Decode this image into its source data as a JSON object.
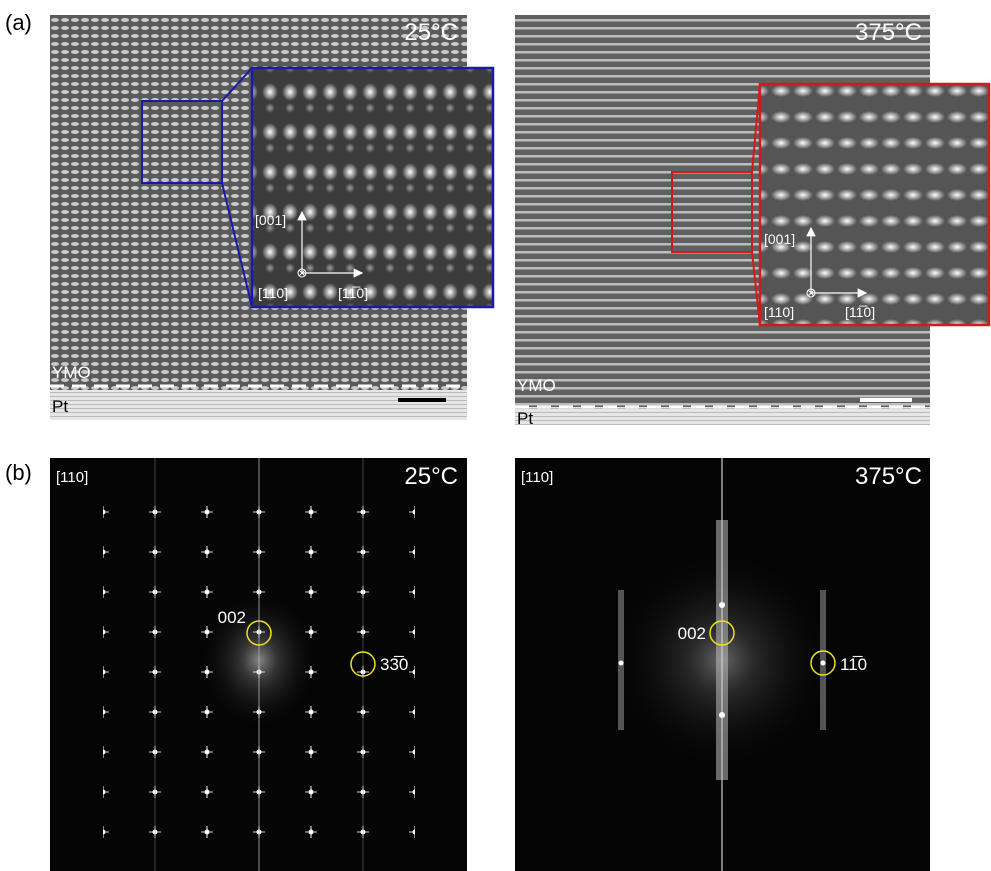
{
  "panel_a": {
    "label": "(a)",
    "images": [
      {
        "temperature": "25°C",
        "inset_axes": {
          "vertical": "[001]",
          "out_of_plane": "[110]",
          "horizontal": "[11̅0]"
        },
        "layers": {
          "film": "YMO",
          "substrate": "Pt"
        }
      },
      {
        "temperature": "375°C",
        "inset_axes": {
          "vertical": "[001]",
          "out_of_plane": "[110]",
          "horizontal": "[11̅0]"
        },
        "layers": {
          "film": "YMO",
          "substrate": "Pt"
        }
      }
    ]
  },
  "panel_b": {
    "label": "(b)",
    "images": [
      {
        "zone_axis": "[110]",
        "temperature": "25°C",
        "spots": {
          "vertical": "002",
          "horizontal": "33̅0"
        }
      },
      {
        "zone_axis": "[110]",
        "temperature": "375°C",
        "spots": {
          "vertical": "002",
          "horizontal": "11̅0"
        }
      }
    ]
  }
}
